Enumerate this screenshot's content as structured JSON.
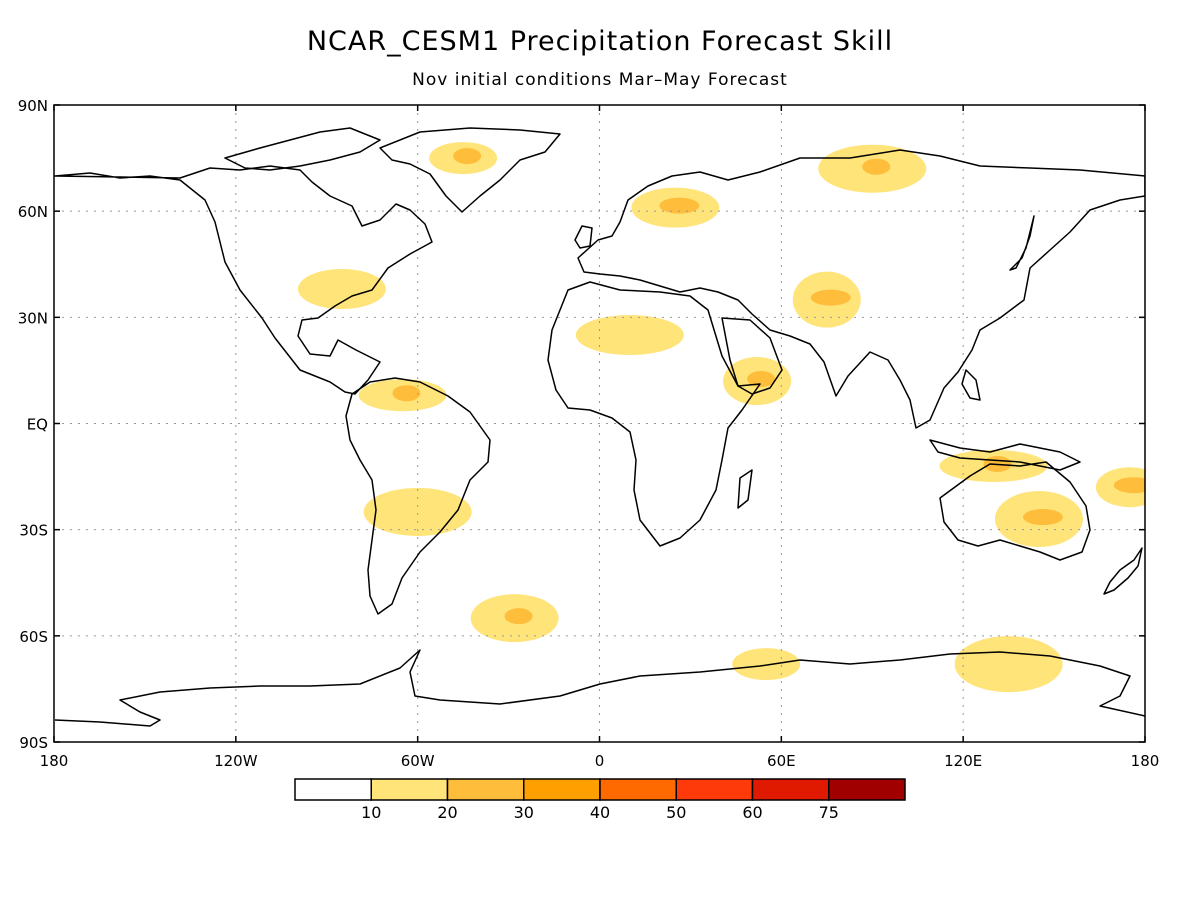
{
  "title": "NCAR_CESM1 Precipitation Forecast Skill",
  "subtitle": "Nov initial conditions   Mar–May Forecast",
  "lat_labels": [
    "90N",
    "60N",
    "30N",
    "EQ",
    "30S",
    "60S",
    "90S"
  ],
  "lon_labels": [
    "180",
    "120W",
    "60W",
    "0",
    "60E",
    "120E",
    "180"
  ],
  "colorbar": {
    "colors": [
      "#ffffff",
      "#ffe47a",
      "#ffbd3c",
      "#ff9f00",
      "#ff6a00",
      "#ff3a0a",
      "#e01a00",
      "#a00000"
    ],
    "labels": [
      "10",
      "20",
      "30",
      "40",
      "50",
      "60",
      "75"
    ]
  },
  "chart_data": {
    "type": "heatmap",
    "title": "NCAR_CESM1 Precipitation Forecast Skill",
    "subtitle": "Nov initial conditions   Mar–May Forecast",
    "xlabel": "",
    "ylabel": "",
    "xlim": [
      -180,
      180
    ],
    "ylim": [
      -90,
      90
    ],
    "x_ticks": [
      "180",
      "120W",
      "60W",
      "0",
      "60E",
      "120E",
      "180"
    ],
    "y_ticks": [
      "90N",
      "60N",
      "30N",
      "EQ",
      "30S",
      "60S",
      "90S"
    ],
    "grid": true,
    "levels": [
      10,
      20,
      30,
      40,
      50,
      60,
      75
    ],
    "skill_regions": [
      {
        "region": "Greenland",
        "lon": -45,
        "lat": 75,
        "level": 20
      },
      {
        "region": "Northern Europe",
        "lon": 25,
        "lat": 61,
        "level": 20
      },
      {
        "region": "Northern Siberia",
        "lon": 90,
        "lat": 72,
        "level": 20
      },
      {
        "region": "Central Asia",
        "lon": 75,
        "lat": 35,
        "level": 20
      },
      {
        "region": "Northern South America",
        "lon": -65,
        "lat": 8,
        "level": 20
      },
      {
        "region": "Sahara",
        "lon": 10,
        "lat": 25,
        "level": 10
      },
      {
        "region": "Arabian Sea coast",
        "lon": 52,
        "lat": 12,
        "level": 20
      },
      {
        "region": "Central Australia",
        "lon": 145,
        "lat": -27,
        "level": 20
      },
      {
        "region": "Northern Australia",
        "lon": 130,
        "lat": -12,
        "level": 20
      },
      {
        "region": "South Pacific",
        "lon": 175,
        "lat": -18,
        "level": 20
      },
      {
        "region": "South Atlantic",
        "lon": -28,
        "lat": -55,
        "level": 20
      },
      {
        "region": "Antarctic coast East",
        "lon": 135,
        "lat": -68,
        "level": 10
      },
      {
        "region": "Antarctic coast Indian",
        "lon": 55,
        "lat": -68,
        "level": 10
      },
      {
        "region": "Eastern United States",
        "lon": -85,
        "lat": 38,
        "level": 10
      },
      {
        "region": "Southern South America",
        "lon": -60,
        "lat": -25,
        "level": 10
      }
    ]
  }
}
